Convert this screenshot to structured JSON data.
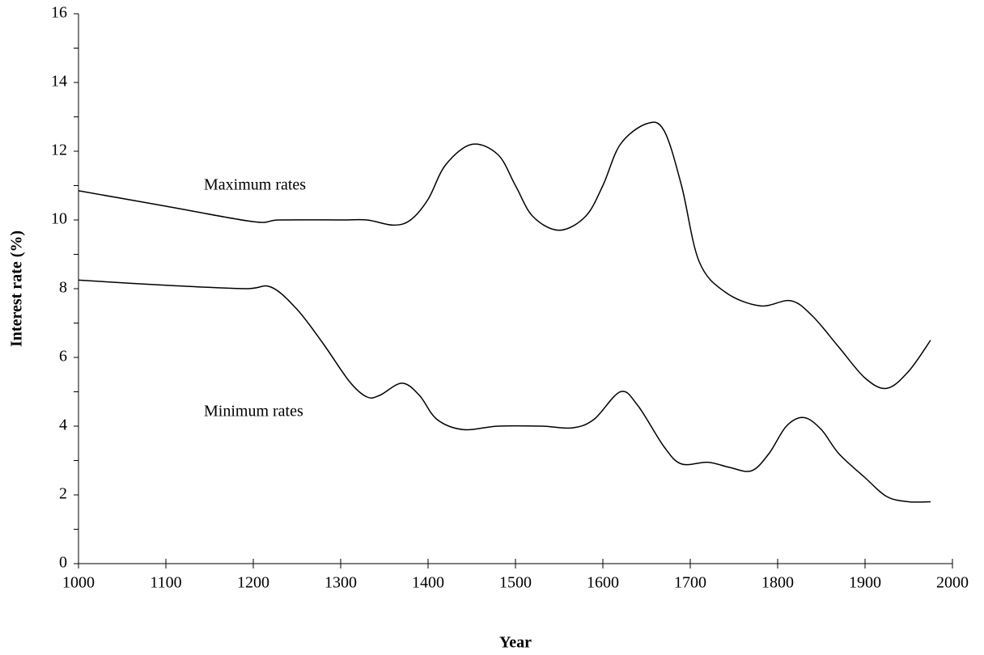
{
  "chart_data": {
    "type": "line",
    "xlabel": "Year",
    "ylabel": "Interest rate (%)",
    "xlim": [
      1000,
      2000
    ],
    "xticks": [
      1000,
      1100,
      1200,
      1300,
      1400,
      1500,
      1600,
      1700,
      1800,
      1900,
      2000
    ],
    "ylim": [
      0,
      16
    ],
    "yticks": [
      0,
      2,
      4,
      6,
      8,
      10,
      12,
      14,
      16
    ],
    "yminorticks": [
      1,
      3,
      5,
      7,
      9,
      11,
      13,
      15
    ],
    "grid": false,
    "series": [
      {
        "name": "Maximum rates",
        "color": "#000000",
        "x": [
          1000,
          1100,
          1200,
          1230,
          1300,
          1330,
          1360,
          1380,
          1400,
          1420,
          1450,
          1480,
          1500,
          1520,
          1550,
          1580,
          1600,
          1620,
          1650,
          1670,
          1690,
          1710,
          1740,
          1780,
          1815,
          1840,
          1870,
          1900,
          1925,
          1950,
          1975
        ],
        "values": [
          10.85,
          10.4,
          9.95,
          10.0,
          10.0,
          10.0,
          9.85,
          10.0,
          10.6,
          11.6,
          12.2,
          11.9,
          11.0,
          10.1,
          9.7,
          10.1,
          11.0,
          12.2,
          12.8,
          12.6,
          11.0,
          8.8,
          7.9,
          7.5,
          7.65,
          7.2,
          6.3,
          5.4,
          5.1,
          5.6,
          6.5
        ]
      },
      {
        "name": "Minimum rates",
        "color": "#000000",
        "x": [
          1000,
          1100,
          1190,
          1220,
          1250,
          1280,
          1310,
          1330,
          1345,
          1370,
          1390,
          1410,
          1440,
          1480,
          1530,
          1565,
          1590,
          1620,
          1640,
          1670,
          1690,
          1720,
          1745,
          1770,
          1790,
          1810,
          1830,
          1850,
          1870,
          1900,
          1925,
          1950,
          1975
        ],
        "values": [
          8.25,
          8.1,
          8.0,
          8.05,
          7.4,
          6.4,
          5.3,
          4.85,
          4.9,
          5.25,
          4.9,
          4.2,
          3.9,
          4.0,
          4.0,
          3.95,
          4.2,
          5.0,
          4.6,
          3.4,
          2.9,
          2.95,
          2.8,
          2.7,
          3.2,
          4.0,
          4.25,
          3.9,
          3.2,
          2.5,
          1.95,
          1.8,
          1.8
        ]
      }
    ]
  }
}
